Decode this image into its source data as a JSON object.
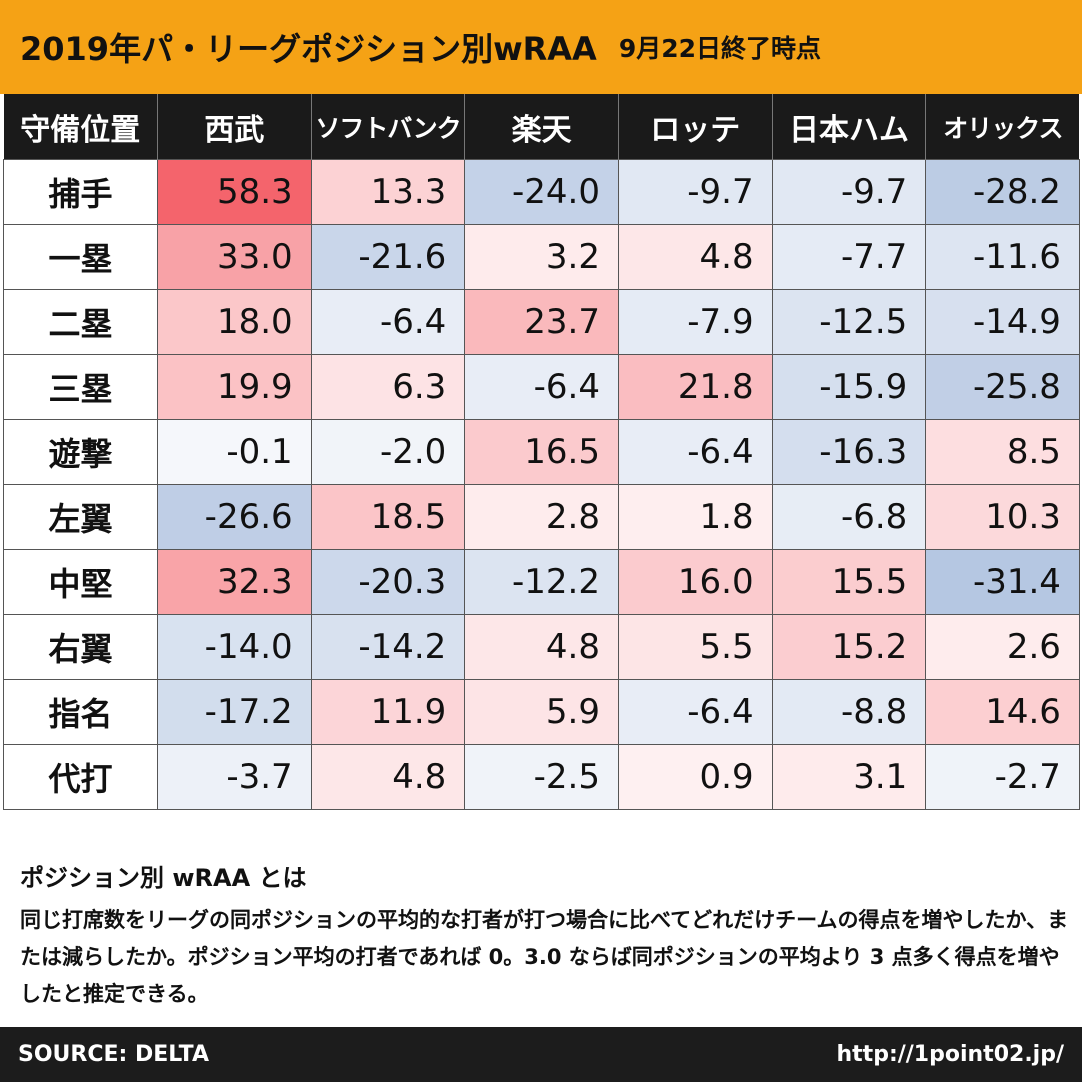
{
  "header": {
    "title": "2019年パ・リーグポジション別wRAA",
    "subtitle": "9月22日終了時点"
  },
  "chart_data": {
    "type": "table",
    "title": "2019年パ・リーグポジション別wRAA 9月22日終了時点",
    "corner_label": "守備位置",
    "columns": [
      "西武",
      "ソフトバンク",
      "楽天",
      "ロッテ",
      "日本ハム",
      "オリックス"
    ],
    "rows": [
      {
        "position": "捕手",
        "values": [
          "58.3",
          "13.3",
          "-24.0",
          "-9.7",
          "-9.7",
          "-28.2"
        ]
      },
      {
        "position": "一塁",
        "values": [
          "33.0",
          "-21.6",
          "3.2",
          "4.8",
          "-7.7",
          "-11.6"
        ]
      },
      {
        "position": "二塁",
        "values": [
          "18.0",
          "-6.4",
          "23.7",
          "-7.9",
          "-12.5",
          "-14.9"
        ]
      },
      {
        "position": "三塁",
        "values": [
          "19.9",
          "6.3",
          "-6.4",
          "21.8",
          "-15.9",
          "-25.8"
        ]
      },
      {
        "position": "遊撃",
        "values": [
          "-0.1",
          "-2.0",
          "16.5",
          "-6.4",
          "-16.3",
          "8.5"
        ]
      },
      {
        "position": "左翼",
        "values": [
          "-26.6",
          "18.5",
          "2.8",
          "1.8",
          "-6.8",
          "10.3"
        ]
      },
      {
        "position": "中堅",
        "values": [
          "32.3",
          "-20.3",
          "-12.2",
          "16.0",
          "15.5",
          "-31.4"
        ]
      },
      {
        "position": "右翼",
        "values": [
          "-14.0",
          "-14.2",
          "4.8",
          "5.5",
          "15.2",
          "2.6"
        ]
      },
      {
        "position": "指名",
        "values": [
          "-17.2",
          "11.9",
          "5.9",
          "-6.4",
          "-8.8",
          "14.6"
        ]
      },
      {
        "position": "代打",
        "values": [
          "-3.7",
          "4.8",
          "-2.5",
          "0.9",
          "3.1",
          "-2.7"
        ]
      }
    ],
    "color_scale": {
      "positive": "#f4646c",
      "negative": "#7f9dcc",
      "neutral": "#ffffff",
      "max_abs": 58.3
    }
  },
  "note": {
    "title": "ポジション別 wRAA とは",
    "body": "同じ打席数をリーグの同ポジションの平均的な打者が打つ場合に比べてどれだけチームの得点を増やしたか、または減らしたか。ポジション平均の打者であれば 0。3.0 ならば同ポジションの平均より 3 点多く得点を増やしたと推定できる。"
  },
  "footer": {
    "source": "SOURCE: DELTA",
    "url": "http://1point02.jp/"
  },
  "colors": {
    "title_bg": "#f5a215",
    "header_bg": "#1a1a1a",
    "footer_bg": "#1c1c1c"
  }
}
